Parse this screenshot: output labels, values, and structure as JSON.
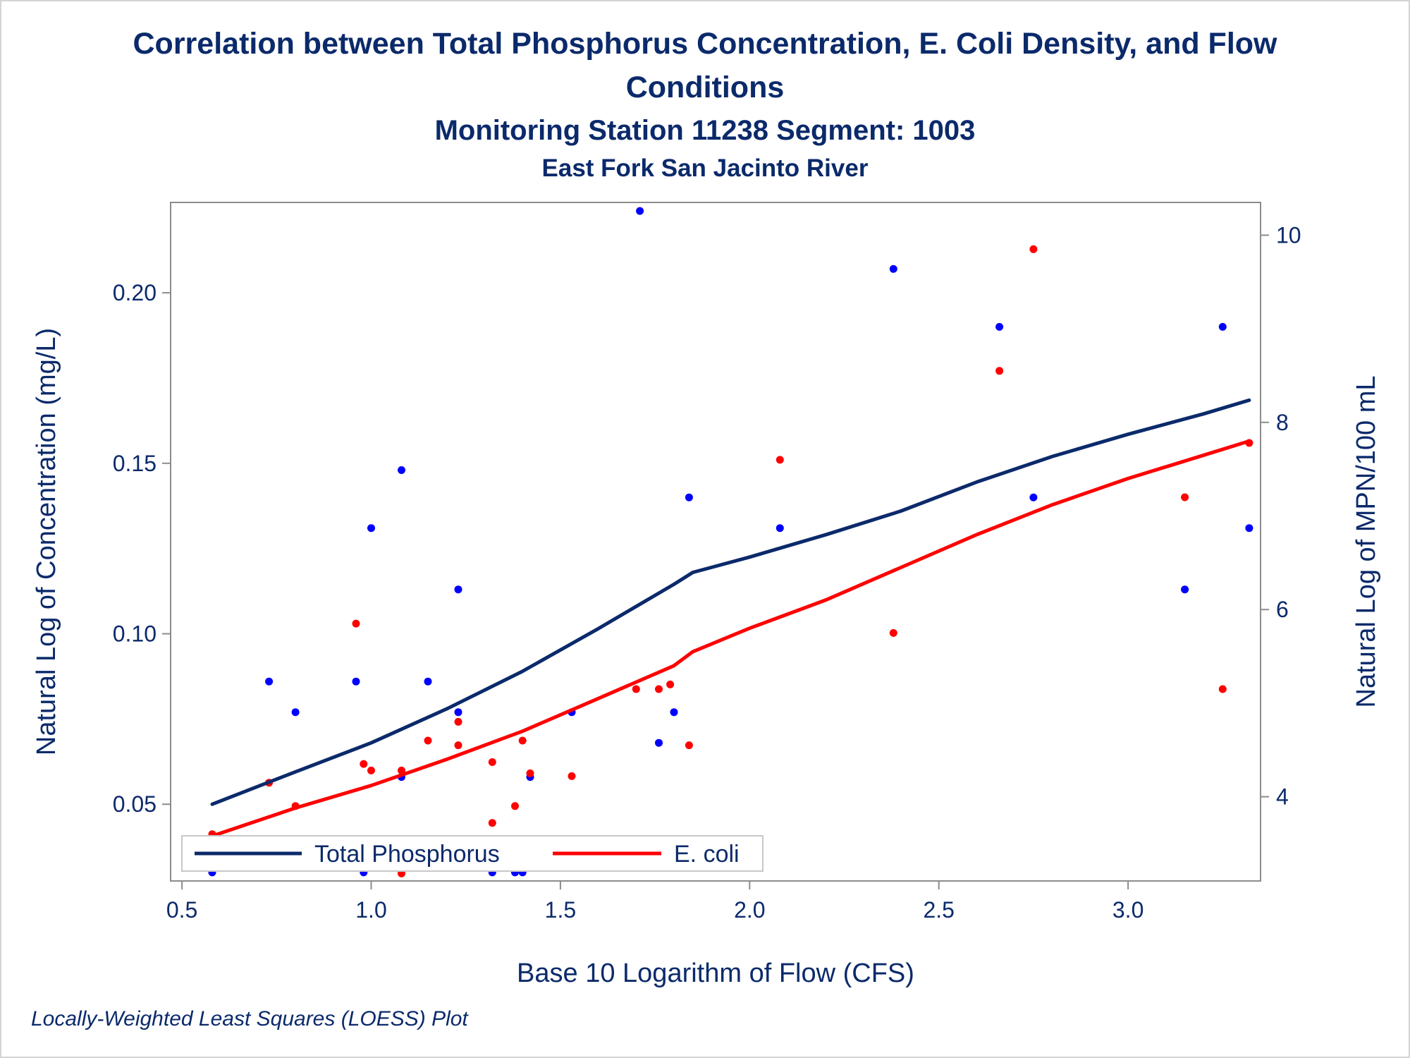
{
  "titles": {
    "line1": "Correlation between Total Phosphorus Concentration, E. Coli Density, and Flow",
    "line2": "Conditions",
    "line3": "Monitoring Station 11238 Segment: 1003",
    "line4": "East Fork San Jacinto River"
  },
  "footnote": "Locally-Weighted Least Squares (LOESS) Plot",
  "colors": {
    "text": "#0b2a6b",
    "phosphorus_line": "#0b2a6b",
    "phosphorus_points": "#0000ff",
    "ecoli": "#ff0000",
    "axis": "#8c8c8c"
  },
  "chart_data": {
    "type": "scatter",
    "xlabel": "Base 10 Logarithm of Flow (CFS)",
    "ylabel": "Natural Log of Concentration (mg/L)",
    "y2label": "Natural Log of MPN/100 mL",
    "xlim": [
      0.47,
      3.35
    ],
    "ylim": [
      0.0275,
      0.2265
    ],
    "y2lim": [
      3.1,
      10.35
    ],
    "xticks": [
      "0.5",
      "1.0",
      "1.5",
      "2.0",
      "2.5",
      "3.0"
    ],
    "yticks": [
      "0.05",
      "0.10",
      "0.15",
      "0.20"
    ],
    "y2ticks": [
      "4",
      "6",
      "8",
      "10"
    ],
    "grid": false,
    "legend_position": "bottom-left inside",
    "legend": [
      {
        "label": "Total Phosphorus",
        "series": "phosphorus"
      },
      {
        "label": "E. coli",
        "series": "ecoli"
      }
    ],
    "series": [
      {
        "key": "phosphorus_points",
        "axis": "left",
        "kind": "points",
        "points": [
          [
            0.58,
            0.03
          ],
          [
            0.73,
            0.086
          ],
          [
            0.8,
            0.077
          ],
          [
            0.96,
            0.086
          ],
          [
            0.98,
            0.03
          ],
          [
            1.0,
            0.131
          ],
          [
            1.08,
            0.058
          ],
          [
            1.08,
            0.148
          ],
          [
            1.15,
            0.086
          ],
          [
            1.23,
            0.113
          ],
          [
            1.23,
            0.077
          ],
          [
            1.32,
            0.03
          ],
          [
            1.38,
            0.03
          ],
          [
            1.4,
            0.03
          ],
          [
            1.42,
            0.058
          ],
          [
            1.53,
            0.077
          ],
          [
            1.71,
            0.224
          ],
          [
            1.76,
            0.068
          ],
          [
            1.8,
            0.077
          ],
          [
            1.84,
            0.14
          ],
          [
            2.08,
            0.131
          ],
          [
            2.38,
            0.207
          ],
          [
            2.66,
            0.19
          ],
          [
            2.75,
            0.14
          ],
          [
            3.15,
            0.113
          ],
          [
            3.25,
            0.19
          ],
          [
            3.32,
            0.131
          ]
        ]
      },
      {
        "key": "ecoli_points",
        "axis": "right",
        "kind": "points",
        "points": [
          [
            0.58,
            3.6
          ],
          [
            0.73,
            4.15
          ],
          [
            0.8,
            3.9
          ],
          [
            0.96,
            5.85
          ],
          [
            0.98,
            4.35
          ],
          [
            1.0,
            4.28
          ],
          [
            1.08,
            4.28
          ],
          [
            1.08,
            3.18
          ],
          [
            1.15,
            4.6
          ],
          [
            1.23,
            4.8
          ],
          [
            1.23,
            4.55
          ],
          [
            1.32,
            4.37
          ],
          [
            1.32,
            3.72
          ],
          [
            1.38,
            3.9
          ],
          [
            1.4,
            4.6
          ],
          [
            1.42,
            4.25
          ],
          [
            1.53,
            4.22
          ],
          [
            1.7,
            5.15
          ],
          [
            1.76,
            5.15
          ],
          [
            1.79,
            5.2
          ],
          [
            1.84,
            4.55
          ],
          [
            2.08,
            7.6
          ],
          [
            2.38,
            5.75
          ],
          [
            2.66,
            8.55
          ],
          [
            2.75,
            9.85
          ],
          [
            3.15,
            7.2
          ],
          [
            3.25,
            5.15
          ],
          [
            3.32,
            7.78
          ]
        ]
      },
      {
        "key": "phosphorus",
        "name": "Total Phosphorus",
        "axis": "left",
        "kind": "line",
        "points": [
          [
            0.58,
            0.05
          ],
          [
            0.8,
            0.0595
          ],
          [
            1.0,
            0.068
          ],
          [
            1.2,
            0.078
          ],
          [
            1.4,
            0.089
          ],
          [
            1.6,
            0.1015
          ],
          [
            1.7,
            0.108
          ],
          [
            1.8,
            0.1145
          ],
          [
            1.85,
            0.118
          ],
          [
            2.0,
            0.1225
          ],
          [
            2.2,
            0.129
          ],
          [
            2.4,
            0.136
          ],
          [
            2.6,
            0.1445
          ],
          [
            2.8,
            0.152
          ],
          [
            3.0,
            0.1585
          ],
          [
            3.2,
            0.1645
          ],
          [
            3.32,
            0.1685
          ]
        ]
      },
      {
        "key": "ecoli",
        "name": "E. coli",
        "axis": "right",
        "kind": "line",
        "points": [
          [
            0.58,
            3.58
          ],
          [
            0.8,
            3.88
          ],
          [
            1.0,
            4.12
          ],
          [
            1.2,
            4.4
          ],
          [
            1.4,
            4.7
          ],
          [
            1.6,
            5.05
          ],
          [
            1.8,
            5.4
          ],
          [
            1.85,
            5.55
          ],
          [
            2.0,
            5.8
          ],
          [
            2.2,
            6.1
          ],
          [
            2.4,
            6.45
          ],
          [
            2.6,
            6.8
          ],
          [
            2.8,
            7.12
          ],
          [
            3.0,
            7.4
          ],
          [
            3.2,
            7.65
          ],
          [
            3.32,
            7.8
          ]
        ]
      }
    ]
  }
}
